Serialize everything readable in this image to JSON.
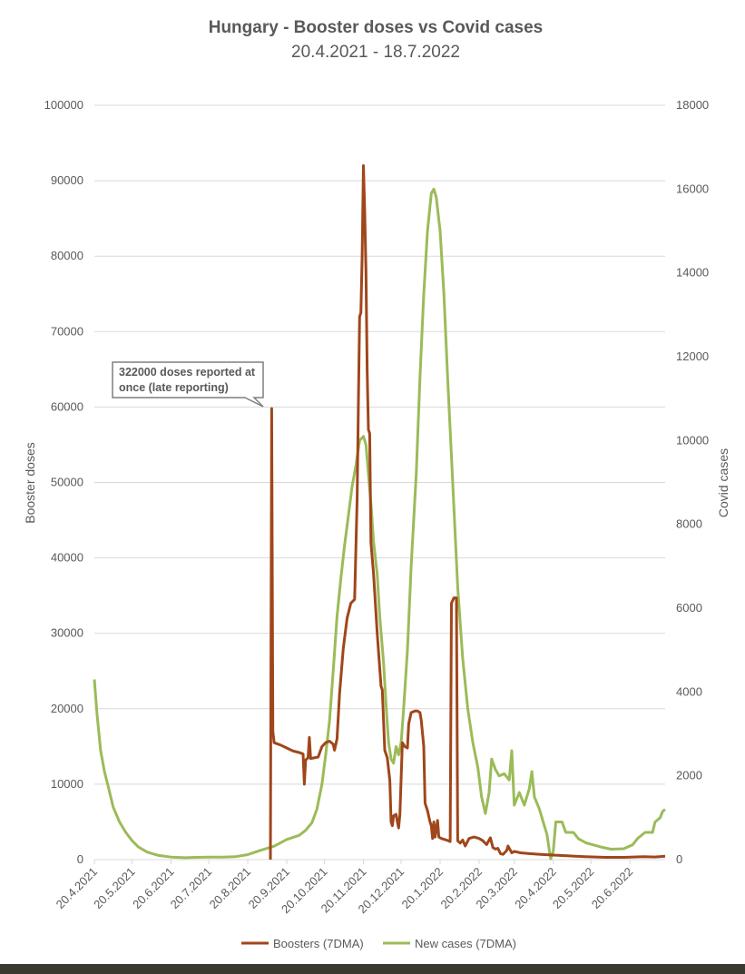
{
  "colors": {
    "boosters": "#a0461b",
    "cases": "#9bbb59",
    "grid": "#d9d9d9",
    "text": "#595959",
    "footer": "#3a3a33"
  },
  "chart_data": {
    "type": "line",
    "title": "Hungary - Booster doses vs Covid cases",
    "subtitle": "20.4.2021 - 18.7.2022",
    "ylabel": "Booster doses",
    "y2label": "Covid cases",
    "ylim": [
      0,
      100000
    ],
    "y2lim": [
      0,
      18000
    ],
    "y_ticks": [
      "0",
      "10000",
      "20000",
      "30000",
      "40000",
      "50000",
      "60000",
      "70000",
      "80000",
      "90000",
      "100000"
    ],
    "y2_ticks": [
      "0",
      "2000",
      "4000",
      "6000",
      "8000",
      "10000",
      "12000",
      "14000",
      "16000",
      "18000"
    ],
    "x_ticks": [
      "20.4.2021",
      "20.5.2021",
      "20.6.2021",
      "20.7.2021",
      "20.8.2021",
      "20.9.2021",
      "20.10.2021",
      "20.11.2021",
      "20.12.2021",
      "20.1.2022",
      "20.2.2022",
      "20.3.2022",
      "20.4.2022",
      "20.5.2022",
      "20.6.2022"
    ],
    "x_start": "2021-04-20",
    "x_end": "2022-07-18",
    "grid": "horizontal",
    "legend_position": "bottom",
    "annotation": {
      "lines": [
        "322000 doses reported at",
        "once (late reporting)"
      ],
      "target_date": "2021-09-07",
      "target_value": 59800
    },
    "series": [
      {
        "name": "Boosters (7DMA)",
        "axis": "left",
        "color": "#a0461b",
        "points": [
          [
            "2021-09-07",
            0
          ],
          [
            "2021-09-08",
            59800
          ],
          [
            "2021-09-09",
            17000
          ],
          [
            "2021-09-10",
            15500
          ],
          [
            "2021-09-15",
            15200
          ],
          [
            "2021-09-20",
            14800
          ],
          [
            "2021-09-25",
            14400
          ],
          [
            "2021-09-30",
            14200
          ],
          [
            "2021-10-03",
            14000
          ],
          [
            "2021-10-04",
            10000
          ],
          [
            "2021-10-05",
            13200
          ],
          [
            "2021-10-07",
            13500
          ],
          [
            "2021-10-08",
            16200
          ],
          [
            "2021-10-09",
            13400
          ],
          [
            "2021-10-15",
            13600
          ],
          [
            "2021-10-18",
            15000
          ],
          [
            "2021-10-21",
            15500
          ],
          [
            "2021-10-24",
            15700
          ],
          [
            "2021-10-27",
            15300
          ],
          [
            "2021-10-28",
            14500
          ],
          [
            "2021-10-30",
            16000
          ],
          [
            "2021-11-01",
            22000
          ],
          [
            "2021-11-04",
            28000
          ],
          [
            "2021-11-07",
            32000
          ],
          [
            "2021-11-10",
            34000
          ],
          [
            "2021-11-13",
            34500
          ],
          [
            "2021-11-15",
            48000
          ],
          [
            "2021-11-16",
            60000
          ],
          [
            "2021-11-17",
            72000
          ],
          [
            "2021-11-18",
            72500
          ],
          [
            "2021-11-19",
            80000
          ],
          [
            "2021-11-20",
            92000
          ],
          [
            "2021-11-21",
            86000
          ],
          [
            "2021-11-22",
            78000
          ],
          [
            "2021-11-23",
            65000
          ],
          [
            "2021-11-24",
            57000
          ],
          [
            "2021-11-25",
            56500
          ],
          [
            "2021-11-26",
            42000
          ],
          [
            "2021-11-28",
            38000
          ],
          [
            "2021-12-01",
            30000
          ],
          [
            "2021-12-04",
            23000
          ],
          [
            "2021-12-05",
            22500
          ],
          [
            "2021-12-07",
            14500
          ],
          [
            "2021-12-09",
            13500
          ],
          [
            "2021-12-11",
            10500
          ],
          [
            "2021-12-12",
            5000
          ],
          [
            "2021-12-13",
            4500
          ],
          [
            "2021-12-14",
            5800
          ],
          [
            "2021-12-16",
            6000
          ],
          [
            "2021-12-17",
            5000
          ],
          [
            "2021-12-18",
            4200
          ],
          [
            "2021-12-19",
            6000
          ],
          [
            "2021-12-21",
            15500
          ],
          [
            "2021-12-23",
            15000
          ],
          [
            "2021-12-25",
            14800
          ],
          [
            "2021-12-26",
            18000
          ],
          [
            "2021-12-28",
            19500
          ],
          [
            "2021-12-31",
            19700
          ],
          [
            "2022-01-02",
            19700
          ],
          [
            "2022-01-04",
            19500
          ],
          [
            "2022-01-05",
            18500
          ],
          [
            "2022-01-07",
            15000
          ],
          [
            "2022-01-08",
            7500
          ],
          [
            "2022-01-10",
            6500
          ],
          [
            "2022-01-12",
            5000
          ],
          [
            "2022-01-13",
            4500
          ],
          [
            "2022-01-14",
            2800
          ],
          [
            "2022-01-15",
            5000
          ],
          [
            "2022-01-16",
            3000
          ],
          [
            "2022-01-18",
            5200
          ],
          [
            "2022-01-19",
            3000
          ],
          [
            "2022-01-21",
            2800
          ],
          [
            "2022-01-25",
            2600
          ],
          [
            "2022-01-28",
            2400
          ],
          [
            "2022-01-29",
            34000
          ],
          [
            "2022-01-31",
            34700
          ],
          [
            "2022-02-02",
            34700
          ],
          [
            "2022-02-03",
            2500
          ],
          [
            "2022-02-05",
            2200
          ],
          [
            "2022-02-07",
            2600
          ],
          [
            "2022-02-09",
            1800
          ],
          [
            "2022-02-12",
            2800
          ],
          [
            "2022-02-16",
            3000
          ],
          [
            "2022-02-20",
            2800
          ],
          [
            "2022-02-23",
            2500
          ],
          [
            "2022-02-26",
            2000
          ],
          [
            "2022-03-01",
            2900
          ],
          [
            "2022-03-03",
            1600
          ],
          [
            "2022-03-05",
            1400
          ],
          [
            "2022-03-07",
            1500
          ],
          [
            "2022-03-09",
            800
          ],
          [
            "2022-03-11",
            700
          ],
          [
            "2022-03-14",
            1200
          ],
          [
            "2022-03-15",
            1800
          ],
          [
            "2022-03-18",
            900
          ],
          [
            "2022-03-20",
            1100
          ],
          [
            "2022-03-25",
            900
          ],
          [
            "2022-04-01",
            800
          ],
          [
            "2022-04-10",
            700
          ],
          [
            "2022-04-20",
            600
          ],
          [
            "2022-05-01",
            500
          ],
          [
            "2022-05-15",
            400
          ],
          [
            "2022-06-01",
            300
          ],
          [
            "2022-06-15",
            300
          ],
          [
            "2022-07-01",
            400
          ],
          [
            "2022-07-10",
            350
          ],
          [
            "2022-07-18",
            450
          ]
        ]
      },
      {
        "name": "New cases (7DMA)",
        "axis": "right",
        "color": "#9bbb59",
        "points": [
          [
            "2021-04-20",
            4300
          ],
          [
            "2021-04-22",
            3500
          ],
          [
            "2021-04-25",
            2600
          ],
          [
            "2021-04-28",
            2100
          ],
          [
            "2021-05-01",
            1750
          ],
          [
            "2021-05-05",
            1250
          ],
          [
            "2021-05-10",
            900
          ],
          [
            "2021-05-15",
            650
          ],
          [
            "2021-05-20",
            450
          ],
          [
            "2021-05-25",
            300
          ],
          [
            "2021-06-01",
            180
          ],
          [
            "2021-06-10",
            100
          ],
          [
            "2021-06-20",
            60
          ],
          [
            "2021-07-01",
            45
          ],
          [
            "2021-07-10",
            55
          ],
          [
            "2021-07-20",
            60
          ],
          [
            "2021-07-31",
            60
          ],
          [
            "2021-08-10",
            70
          ],
          [
            "2021-08-20",
            120
          ],
          [
            "2021-08-30",
            220
          ],
          [
            "2021-09-10",
            320
          ],
          [
            "2021-09-20",
            480
          ],
          [
            "2021-09-30",
            580
          ],
          [
            "2021-10-05",
            700
          ],
          [
            "2021-10-10",
            880
          ],
          [
            "2021-10-14",
            1200
          ],
          [
            "2021-10-18",
            1800
          ],
          [
            "2021-10-21",
            2500
          ],
          [
            "2021-10-24",
            3300
          ],
          [
            "2021-10-27",
            4500
          ],
          [
            "2021-10-30",
            5800
          ],
          [
            "2021-11-02",
            6700
          ],
          [
            "2021-11-05",
            7500
          ],
          [
            "2021-11-08",
            8200
          ],
          [
            "2021-11-11",
            8900
          ],
          [
            "2021-11-14",
            9400
          ],
          [
            "2021-11-17",
            10000
          ],
          [
            "2021-11-20",
            10100
          ],
          [
            "2021-11-22",
            9900
          ],
          [
            "2021-11-24",
            9200
          ],
          [
            "2021-11-26",
            8500
          ],
          [
            "2021-11-28",
            7600
          ],
          [
            "2021-12-01",
            6800
          ],
          [
            "2021-12-03",
            5800
          ],
          [
            "2021-12-06",
            4700
          ],
          [
            "2021-12-08",
            3700
          ],
          [
            "2021-12-10",
            2800
          ],
          [
            "2021-12-12",
            2400
          ],
          [
            "2021-12-14",
            2300
          ],
          [
            "2021-12-16",
            2700
          ],
          [
            "2021-12-18",
            2500
          ],
          [
            "2021-12-20",
            2800
          ],
          [
            "2021-12-22",
            3600
          ],
          [
            "2021-12-25",
            5000
          ],
          [
            "2021-12-28",
            7000
          ],
          [
            "2022-01-01",
            9200
          ],
          [
            "2022-01-04",
            11500
          ],
          [
            "2022-01-07",
            13500
          ],
          [
            "2022-01-10",
            15000
          ],
          [
            "2022-01-13",
            15900
          ],
          [
            "2022-01-15",
            16000
          ],
          [
            "2022-01-17",
            15800
          ],
          [
            "2022-01-20",
            15000
          ],
          [
            "2022-01-23",
            13500
          ],
          [
            "2022-01-26",
            11500
          ],
          [
            "2022-01-30",
            9000
          ],
          [
            "2022-02-03",
            6500
          ],
          [
            "2022-02-07",
            4800
          ],
          [
            "2022-02-11",
            3600
          ],
          [
            "2022-02-15",
            2800
          ],
          [
            "2022-02-19",
            2200
          ],
          [
            "2022-02-22",
            1500
          ],
          [
            "2022-02-25",
            1100
          ],
          [
            "2022-02-28",
            1600
          ],
          [
            "2022-03-02",
            2400
          ],
          [
            "2022-03-05",
            2150
          ],
          [
            "2022-03-08",
            2000
          ],
          [
            "2022-03-12",
            2050
          ],
          [
            "2022-03-16",
            1900
          ],
          [
            "2022-03-18",
            2600
          ],
          [
            "2022-03-20",
            1300
          ],
          [
            "2022-03-24",
            1600
          ],
          [
            "2022-03-28",
            1300
          ],
          [
            "2022-04-01",
            1700
          ],
          [
            "2022-04-03",
            2100
          ],
          [
            "2022-04-05",
            1500
          ],
          [
            "2022-04-09",
            1200
          ],
          [
            "2022-04-12",
            900
          ],
          [
            "2022-04-15",
            600
          ],
          [
            "2022-04-17",
            200
          ],
          [
            "2022-04-18",
            20
          ],
          [
            "2022-04-20",
            200
          ],
          [
            "2022-04-22",
            900
          ],
          [
            "2022-04-27",
            900
          ],
          [
            "2022-04-30",
            650
          ],
          [
            "2022-05-06",
            650
          ],
          [
            "2022-05-10",
            500
          ],
          [
            "2022-05-16",
            400
          ],
          [
            "2022-05-22",
            350
          ],
          [
            "2022-05-28",
            300
          ],
          [
            "2022-06-05",
            250
          ],
          [
            "2022-06-15",
            260
          ],
          [
            "2022-06-22",
            350
          ],
          [
            "2022-06-26",
            500
          ],
          [
            "2022-07-02",
            650
          ],
          [
            "2022-07-08",
            650
          ],
          [
            "2022-07-10",
            900
          ],
          [
            "2022-07-14",
            1000
          ],
          [
            "2022-07-16",
            1150
          ],
          [
            "2022-07-18",
            1200
          ]
        ]
      }
    ]
  }
}
